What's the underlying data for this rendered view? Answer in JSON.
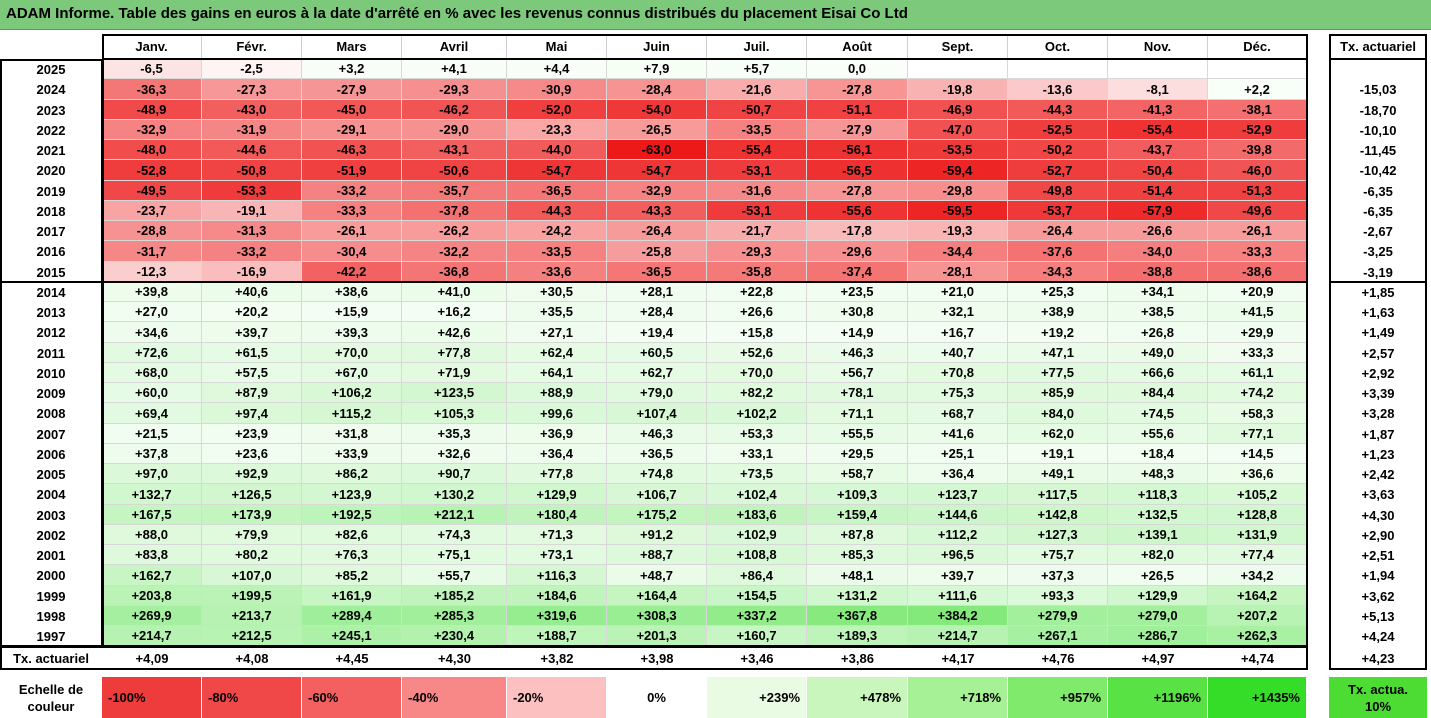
{
  "title": "ADAM Informe. Table des gains en euros à la date d'arrêté en % avec les revenus connus distribués du placement Eisai Co Ltd",
  "chart_data": {
    "type": "table",
    "columns": [
      "Janv.",
      "Févr.",
      "Mars",
      "Avril",
      "Mai",
      "Juin",
      "Juil.",
      "Août",
      "Sept.",
      "Oct.",
      "Nov.",
      "Déc."
    ],
    "rate_header": "Tx. actuariel",
    "rows": [
      {
        "year": "2025",
        "values": [
          "-6,5",
          "-2,5",
          "+3,2",
          "+4,1",
          "+4,4",
          "+7,9",
          "+5,7",
          "0,0",
          "",
          "",
          "",
          ""
        ],
        "rate": ""
      },
      {
        "year": "2024",
        "values": [
          "-36,3",
          "-27,3",
          "-27,9",
          "-29,3",
          "-30,9",
          "-28,4",
          "-21,6",
          "-27,8",
          "-19,8",
          "-13,6",
          "-8,1",
          "+2,2"
        ],
        "rate": "-15,03"
      },
      {
        "year": "2023",
        "values": [
          "-48,9",
          "-43,0",
          "-45,0",
          "-46,2",
          "-52,0",
          "-54,0",
          "-50,7",
          "-51,1",
          "-46,9",
          "-44,3",
          "-41,3",
          "-38,1"
        ],
        "rate": "-18,70"
      },
      {
        "year": "2022",
        "values": [
          "-32,9",
          "-31,9",
          "-29,1",
          "-29,0",
          "-23,3",
          "-26,5",
          "-33,5",
          "-27,9",
          "-47,0",
          "-52,5",
          "-55,4",
          "-52,9"
        ],
        "rate": "-10,10"
      },
      {
        "year": "2021",
        "values": [
          "-48,0",
          "-44,6",
          "-46,3",
          "-43,1",
          "-44,0",
          "-63,0",
          "-55,4",
          "-56,1",
          "-53,5",
          "-50,2",
          "-43,7",
          "-39,8"
        ],
        "rate": "-11,45"
      },
      {
        "year": "2020",
        "values": [
          "-52,8",
          "-50,8",
          "-51,9",
          "-50,6",
          "-54,7",
          "-54,7",
          "-53,1",
          "-56,5",
          "-59,4",
          "-52,7",
          "-50,4",
          "-46,0"
        ],
        "rate": "-10,42"
      },
      {
        "year": "2019",
        "values": [
          "-49,5",
          "-53,3",
          "-33,2",
          "-35,7",
          "-36,5",
          "-32,9",
          "-31,6",
          "-27,8",
          "-29,8",
          "-49,8",
          "-51,4",
          "-51,3"
        ],
        "rate": "-6,35"
      },
      {
        "year": "2018",
        "values": [
          "-23,7",
          "-19,1",
          "-33,3",
          "-37,8",
          "-44,3",
          "-43,3",
          "-53,1",
          "-55,6",
          "-59,5",
          "-53,7",
          "-57,9",
          "-49,6"
        ],
        "rate": "-6,35"
      },
      {
        "year": "2017",
        "values": [
          "-28,8",
          "-31,3",
          "-26,1",
          "-26,2",
          "-24,2",
          "-26,4",
          "-21,7",
          "-17,8",
          "-19,3",
          "-26,4",
          "-26,6",
          "-26,1"
        ],
        "rate": "-2,67"
      },
      {
        "year": "2016",
        "values": [
          "-31,7",
          "-33,2",
          "-30,4",
          "-32,2",
          "-33,5",
          "-25,8",
          "-29,3",
          "-29,6",
          "-34,4",
          "-37,6",
          "-34,0",
          "-33,3"
        ],
        "rate": "-3,25"
      },
      {
        "year": "2015",
        "values": [
          "-12,3",
          "-16,9",
          "-42,2",
          "-36,8",
          "-33,6",
          "-36,5",
          "-35,8",
          "-37,4",
          "-28,1",
          "-34,3",
          "-38,8",
          "-38,6"
        ],
        "rate": "-3,19"
      },
      {
        "year": "2014",
        "values": [
          "+39,8",
          "+40,6",
          "+38,6",
          "+41,0",
          "+30,5",
          "+28,1",
          "+22,8",
          "+23,5",
          "+21,0",
          "+25,3",
          "+34,1",
          "+20,9"
        ],
        "rate": "+1,85"
      },
      {
        "year": "2013",
        "values": [
          "+27,0",
          "+20,2",
          "+15,9",
          "+16,2",
          "+35,5",
          "+28,4",
          "+26,6",
          "+30,8",
          "+32,1",
          "+38,9",
          "+38,5",
          "+41,5"
        ],
        "rate": "+1,63"
      },
      {
        "year": "2012",
        "values": [
          "+34,6",
          "+39,7",
          "+39,3",
          "+42,6",
          "+27,1",
          "+19,4",
          "+15,8",
          "+14,9",
          "+16,7",
          "+19,2",
          "+26,8",
          "+29,9"
        ],
        "rate": "+1,49"
      },
      {
        "year": "2011",
        "values": [
          "+72,6",
          "+61,5",
          "+70,0",
          "+77,8",
          "+62,4",
          "+60,5",
          "+52,6",
          "+46,3",
          "+40,7",
          "+47,1",
          "+49,0",
          "+33,3"
        ],
        "rate": "+2,57"
      },
      {
        "year": "2010",
        "values": [
          "+68,0",
          "+57,5",
          "+67,0",
          "+71,9",
          "+64,1",
          "+62,7",
          "+70,0",
          "+56,7",
          "+70,8",
          "+77,5",
          "+66,6",
          "+61,1"
        ],
        "rate": "+2,92"
      },
      {
        "year": "2009",
        "values": [
          "+60,0",
          "+87,9",
          "+106,2",
          "+123,5",
          "+88,9",
          "+79,0",
          "+82,2",
          "+78,1",
          "+75,3",
          "+85,9",
          "+84,4",
          "+74,2"
        ],
        "rate": "+3,39"
      },
      {
        "year": "2008",
        "values": [
          "+69,4",
          "+97,4",
          "+115,2",
          "+105,3",
          "+99,6",
          "+107,4",
          "+102,2",
          "+71,1",
          "+68,7",
          "+84,0",
          "+74,5",
          "+58,3"
        ],
        "rate": "+3,28"
      },
      {
        "year": "2007",
        "values": [
          "+21,5",
          "+23,9",
          "+31,8",
          "+35,3",
          "+36,9",
          "+46,3",
          "+53,3",
          "+55,5",
          "+41,6",
          "+62,0",
          "+55,6",
          "+77,1"
        ],
        "rate": "+1,87"
      },
      {
        "year": "2006",
        "values": [
          "+37,8",
          "+23,6",
          "+33,9",
          "+32,6",
          "+36,4",
          "+36,5",
          "+33,1",
          "+29,5",
          "+25,1",
          "+19,1",
          "+18,4",
          "+14,5"
        ],
        "rate": "+1,23"
      },
      {
        "year": "2005",
        "values": [
          "+97,0",
          "+92,9",
          "+86,2",
          "+90,7",
          "+77,8",
          "+74,8",
          "+73,5",
          "+58,7",
          "+36,4",
          "+49,1",
          "+48,3",
          "+36,6"
        ],
        "rate": "+2,42"
      },
      {
        "year": "2004",
        "values": [
          "+132,7",
          "+126,5",
          "+123,9",
          "+130,2",
          "+129,9",
          "+106,7",
          "+102,4",
          "+109,3",
          "+123,7",
          "+117,5",
          "+118,3",
          "+105,2"
        ],
        "rate": "+3,63"
      },
      {
        "year": "2003",
        "values": [
          "+167,5",
          "+173,9",
          "+192,5",
          "+212,1",
          "+180,4",
          "+175,2",
          "+183,6",
          "+159,4",
          "+144,6",
          "+142,8",
          "+132,5",
          "+128,8"
        ],
        "rate": "+4,30"
      },
      {
        "year": "2002",
        "values": [
          "+88,0",
          "+79,9",
          "+82,6",
          "+74,3",
          "+71,3",
          "+91,2",
          "+102,9",
          "+87,8",
          "+112,2",
          "+127,3",
          "+139,1",
          "+131,9"
        ],
        "rate": "+2,90"
      },
      {
        "year": "2001",
        "values": [
          "+83,8",
          "+80,2",
          "+76,3",
          "+75,1",
          "+73,1",
          "+88,7",
          "+108,8",
          "+85,3",
          "+96,5",
          "+75,7",
          "+82,0",
          "+77,4"
        ],
        "rate": "+2,51"
      },
      {
        "year": "2000",
        "values": [
          "+162,7",
          "+107,0",
          "+85,2",
          "+55,7",
          "+116,3",
          "+48,7",
          "+86,4",
          "+48,1",
          "+39,7",
          "+37,3",
          "+26,5",
          "+34,2"
        ],
        "rate": "+1,94"
      },
      {
        "year": "1999",
        "values": [
          "+203,8",
          "+199,5",
          "+161,9",
          "+185,2",
          "+184,6",
          "+164,4",
          "+154,5",
          "+131,2",
          "+111,6",
          "+93,3",
          "+129,9",
          "+164,2"
        ],
        "rate": "+3,62"
      },
      {
        "year": "1998",
        "values": [
          "+269,9",
          "+213,7",
          "+289,4",
          "+285,3",
          "+319,6",
          "+308,3",
          "+337,2",
          "+367,8",
          "+384,2",
          "+279,9",
          "+279,0",
          "+207,2"
        ],
        "rate": "+5,13"
      },
      {
        "year": "1997",
        "values": [
          "+214,7",
          "+212,5",
          "+245,1",
          "+230,4",
          "+188,7",
          "+201,3",
          "+160,7",
          "+189,3",
          "+214,7",
          "+267,1",
          "+286,7",
          "+262,3"
        ],
        "rate": "+4,24"
      }
    ],
    "footer": {
      "label": "Tx. actuariel",
      "values": [
        "+4,09",
        "+4,08",
        "+4,45",
        "+4,30",
        "+3,82",
        "+3,98",
        "+3,46",
        "+3,86",
        "+4,17",
        "+4,76",
        "+4,97",
        "+4,74"
      ],
      "rate": "+4,23"
    },
    "color_scale": {
      "label": "Echelle de couleur",
      "labels": [
        "-100%",
        "-80%",
        "-60%",
        "-40%",
        "-20%",
        "0%",
        "+239%",
        "+478%",
        "+718%",
        "+957%",
        "+1196%",
        "+1435%"
      ],
      "colors": [
        "#ee3b3b",
        "#f04848",
        "#f46060",
        "#f88888",
        "#fcc0c0",
        "#ffffff",
        "#e9fbe3",
        "#c8f6bc",
        "#a6f196",
        "#7fea6c",
        "#58e244",
        "#35dc28"
      ],
      "extra_label": "Tx. actua. 10%",
      "extra_color": "#4cdc34"
    }
  }
}
